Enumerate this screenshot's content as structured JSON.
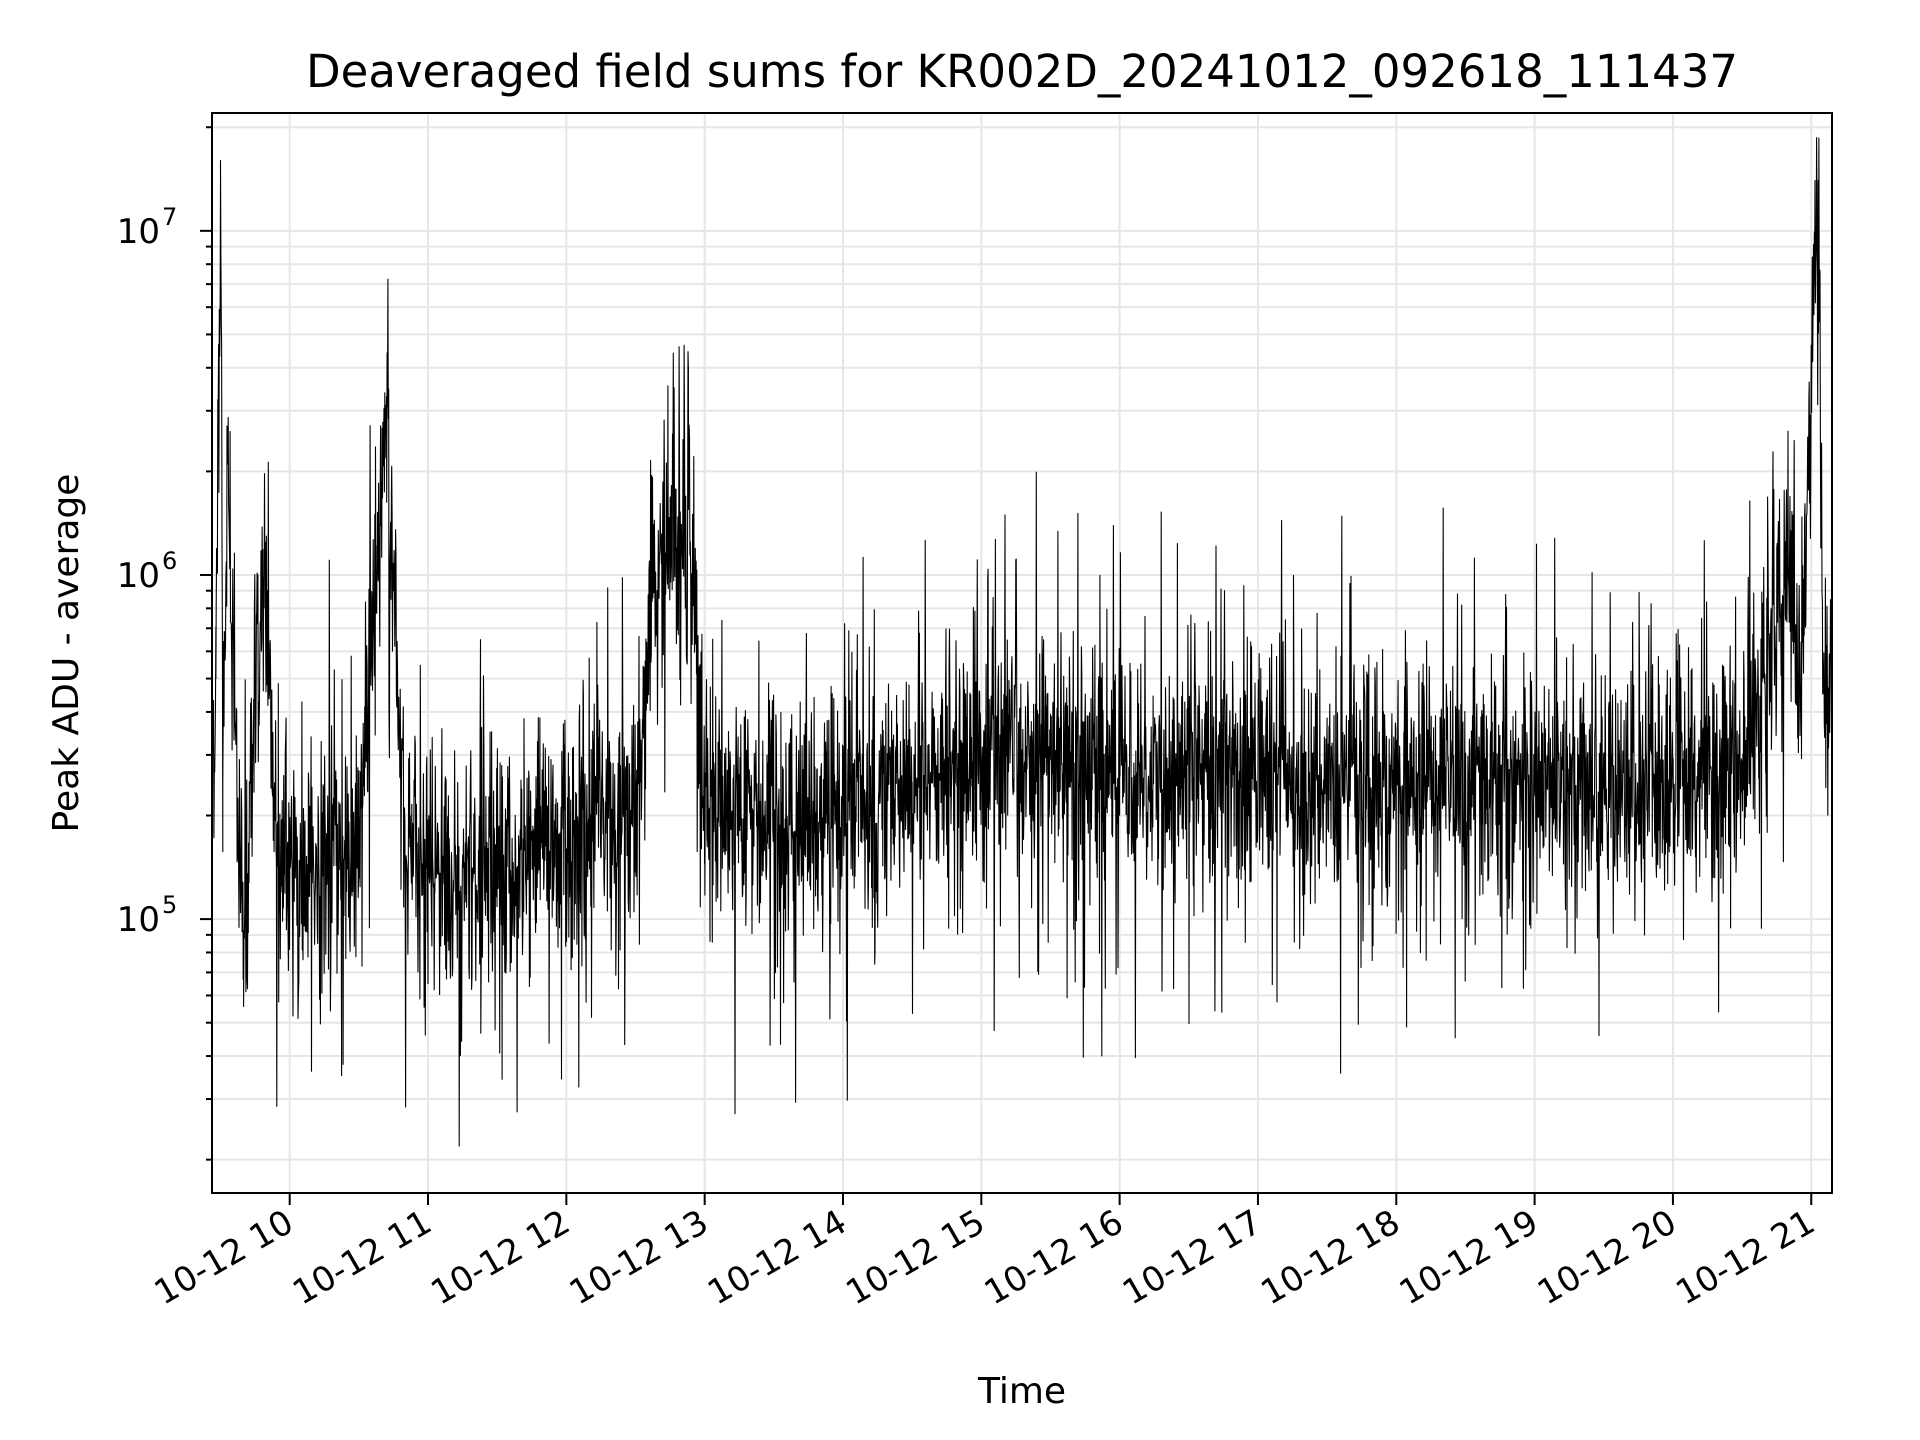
{
  "chart_data": {
    "type": "line",
    "title": "Deaveraged field sums for KR002D_20241012_092618_111437",
    "xlabel": "Time",
    "ylabel": "Peak ADU - average",
    "yscale": "log",
    "ylim": [
      16000,
      22000000
    ],
    "xlim": [
      "2024-10-12T09:26:18",
      "2024-10-12T21:09:00"
    ],
    "x_ticks": [
      {
        "label": "10-12 10",
        "time": "2024-10-12T10:00:00"
      },
      {
        "label": "10-12 11",
        "time": "2024-10-12T11:00:00"
      },
      {
        "label": "10-12 12",
        "time": "2024-10-12T12:00:00"
      },
      {
        "label": "10-12 13",
        "time": "2024-10-12T13:00:00"
      },
      {
        "label": "10-12 14",
        "time": "2024-10-12T14:00:00"
      },
      {
        "label": "10-12 15",
        "time": "2024-10-12T15:00:00"
      },
      {
        "label": "10-12 16",
        "time": "2024-10-12T16:00:00"
      },
      {
        "label": "10-12 17",
        "time": "2024-10-12T17:00:00"
      },
      {
        "label": "10-12 18",
        "time": "2024-10-12T18:00:00"
      },
      {
        "label": "10-12 19",
        "time": "2024-10-12T19:00:00"
      },
      {
        "label": "10-12 20",
        "time": "2024-10-12T20:00:00"
      },
      {
        "label": "10-12 21",
        "time": "2024-10-12T21:00:00"
      }
    ],
    "y_ticks": [
      {
        "base": "10",
        "exp": "5",
        "value": 100000
      },
      {
        "base": "10",
        "exp": "6",
        "value": 1000000
      },
      {
        "base": "10",
        "exp": "7",
        "value": 10000000
      }
    ],
    "grid": true,
    "line_color": "#000000",
    "grid_color": "#e6e6e6",
    "series": [
      {
        "points": [
          [
            "2024-10-12T09:26:18",
            300000
          ],
          [
            "2024-10-12T09:28:00",
            500000
          ],
          [
            "2024-10-12T09:30:00",
            16000000
          ],
          [
            "2024-10-12T09:31:00",
            250000
          ],
          [
            "2024-10-12T09:33:00",
            2100000
          ],
          [
            "2024-10-12T09:36:00",
            400000
          ],
          [
            "2024-10-12T09:40:00",
            90000
          ],
          [
            "2024-10-12T09:45:00",
            500000
          ],
          [
            "2024-10-12T09:48:00",
            1050000
          ],
          [
            "2024-10-12T09:50:00",
            700000
          ],
          [
            "2024-10-12T09:55:00",
            150000
          ],
          [
            "2024-10-12T10:00:00",
            130000
          ],
          [
            "2024-10-12T10:15:00",
            140000
          ],
          [
            "2024-10-12T10:30:00",
            150000
          ],
          [
            "2024-10-12T10:38:00",
            1100000
          ],
          [
            "2024-10-12T10:42:00",
            3300000
          ],
          [
            "2024-10-12T10:45:00",
            900000
          ],
          [
            "2024-10-12T10:50:00",
            150000
          ],
          [
            "2024-10-12T11:00:00",
            130000
          ],
          [
            "2024-10-12T11:30:00",
            140000
          ],
          [
            "2024-10-12T12:00:00",
            160000
          ],
          [
            "2024-10-12T12:30:00",
            200000
          ],
          [
            "2024-10-12T12:40:00",
            1100000
          ],
          [
            "2024-10-12T12:53:00",
            1550000
          ],
          [
            "2024-10-12T13:00:00",
            200000
          ],
          [
            "2024-10-12T13:30:00",
            180000
          ],
          [
            "2024-10-12T14:00:00",
            220000
          ],
          [
            "2024-10-12T14:30:00",
            250000
          ],
          [
            "2024-10-12T15:00:00",
            280000
          ],
          [
            "2024-10-12T15:30:00",
            300000
          ],
          [
            "2024-10-12T16:00:00",
            280000
          ],
          [
            "2024-10-12T16:30:00",
            270000
          ],
          [
            "2024-10-12T17:00:00",
            260000
          ],
          [
            "2024-10-12T17:30:00",
            250000
          ],
          [
            "2024-10-12T18:00:00",
            250000
          ],
          [
            "2024-10-12T18:30:00",
            250000
          ],
          [
            "2024-10-12T19:00:00",
            240000
          ],
          [
            "2024-10-12T19:30:00",
            240000
          ],
          [
            "2024-10-12T20:00:00",
            240000
          ],
          [
            "2024-10-12T20:30:00",
            280000
          ],
          [
            "2024-10-12T20:45:00",
            700000
          ],
          [
            "2024-10-12T20:50:00",
            1200000
          ],
          [
            "2024-10-12T20:55:00",
            450000
          ],
          [
            "2024-10-12T21:03:00",
            14000000
          ],
          [
            "2024-10-12T21:05:00",
            500000
          ],
          [
            "2024-10-12T21:09:00",
            600000
          ]
        ]
      }
    ]
  }
}
